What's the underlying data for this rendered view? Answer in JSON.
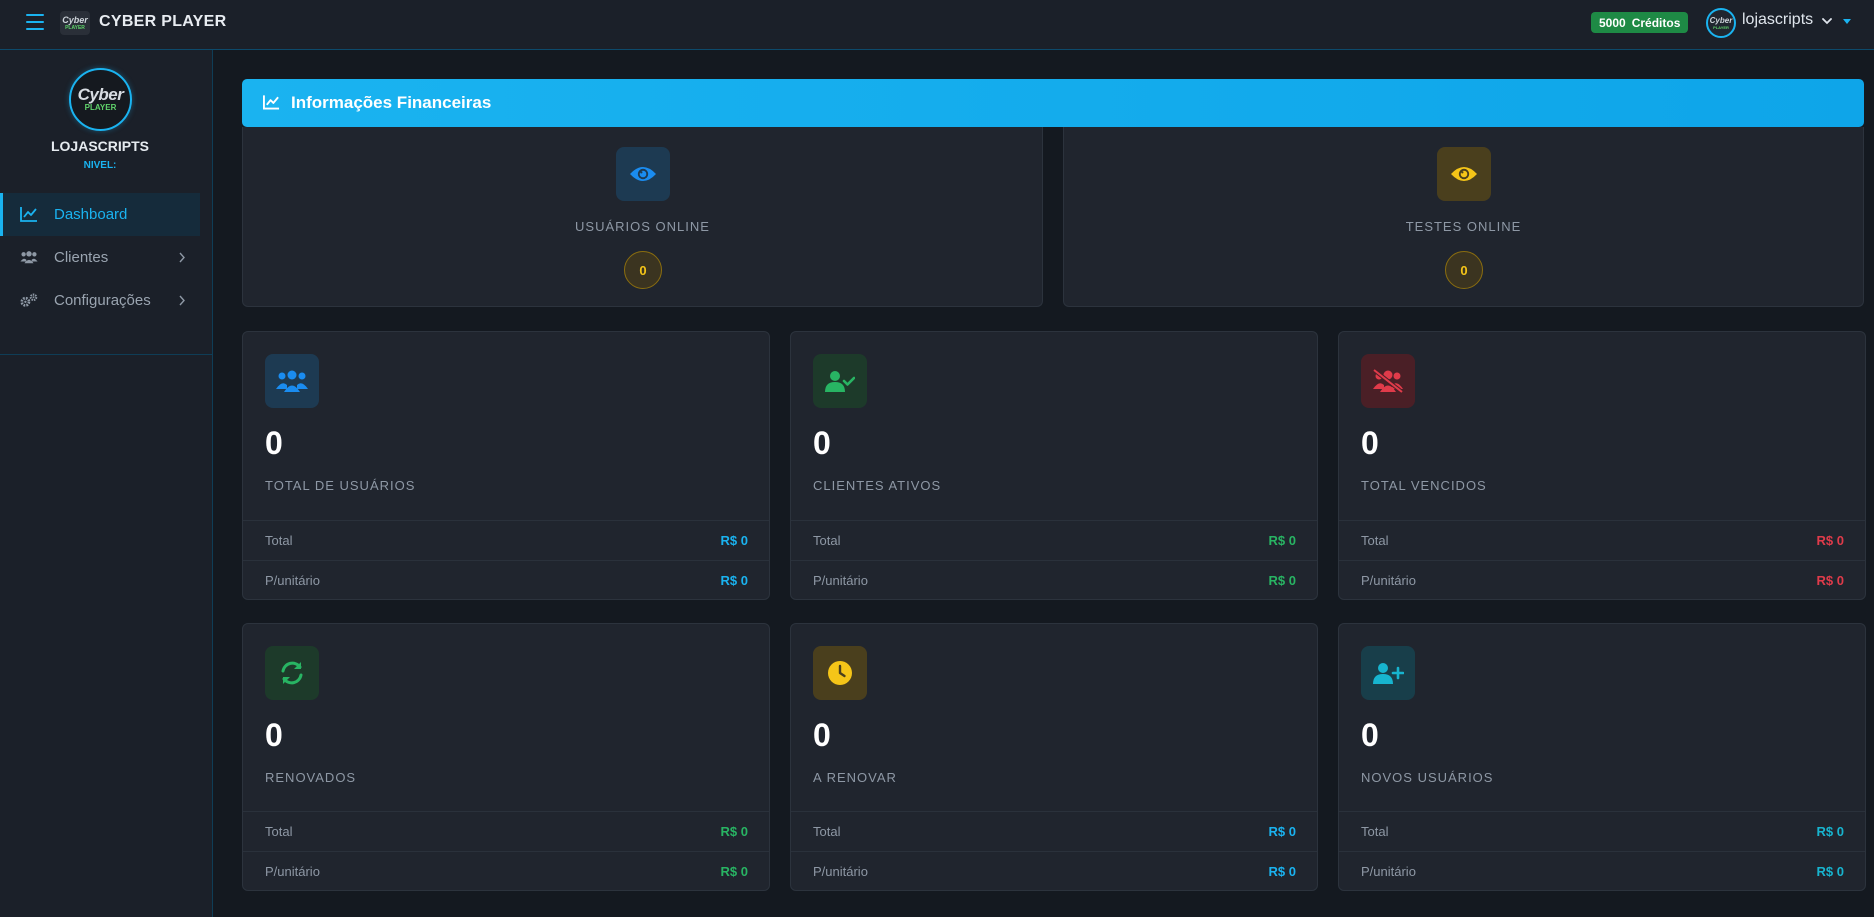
{
  "topbar": {
    "brand_logo_line1": "Cyber",
    "brand_logo_line2": "PLAYER",
    "brand_name": "CYBER PLAYER",
    "credits_amount": "5000",
    "credits_label": "Créditos",
    "username": "lojascripts"
  },
  "sidebar": {
    "avatar_line1": "Cyber",
    "avatar_line2": "PLAYER",
    "user": "LOJASCRIPTS",
    "level": "NIVEL:",
    "items": [
      {
        "label": "Dashboard",
        "icon": "chart-line-icon"
      },
      {
        "label": "Clientes",
        "icon": "users-icon"
      },
      {
        "label": "Configurações",
        "icon": "cogs-icon"
      }
    ]
  },
  "main": {
    "header_title": "Informações Financeiras",
    "online": [
      {
        "label": "USUÁRIOS ONLINE",
        "count": "0",
        "icon": "eye-icon",
        "color": "#1a8cf0"
      },
      {
        "label": "TESTES ONLINE",
        "count": "0",
        "icon": "eye-icon",
        "color": "#f5c518"
      }
    ],
    "total_label": "Total",
    "unit_label": "P/unitário",
    "cards": [
      {
        "value": "0",
        "label": "TOTAL DE USUÁRIOS",
        "total": "R$ 0",
        "unit": "R$ 0",
        "icon": "users-icon",
        "color": "#1ab3f0"
      },
      {
        "value": "0",
        "label": "CLIENTES ATIVOS",
        "total": "R$ 0",
        "unit": "R$ 0",
        "icon": "user-check-icon",
        "color": "#28b463"
      },
      {
        "value": "0",
        "label": "TOTAL VENCIDOS",
        "total": "R$ 0",
        "unit": "R$ 0",
        "icon": "users-slash-icon",
        "color": "#e03b4a"
      },
      {
        "value": "0",
        "label": "RENOVADOS",
        "total": "R$ 0",
        "unit": "R$ 0",
        "icon": "sync-icon",
        "color": "#28b463"
      },
      {
        "value": "0",
        "label": "A RENOVAR",
        "total": "R$ 0",
        "unit": "R$ 0",
        "icon": "clock-icon",
        "color": "#1ab3f0"
      },
      {
        "value": "0",
        "label": "NOVOS USUÁRIOS",
        "total": "R$ 0",
        "unit": "R$ 0",
        "icon": "user-plus-icon",
        "color": "#17b4cf"
      }
    ]
  }
}
